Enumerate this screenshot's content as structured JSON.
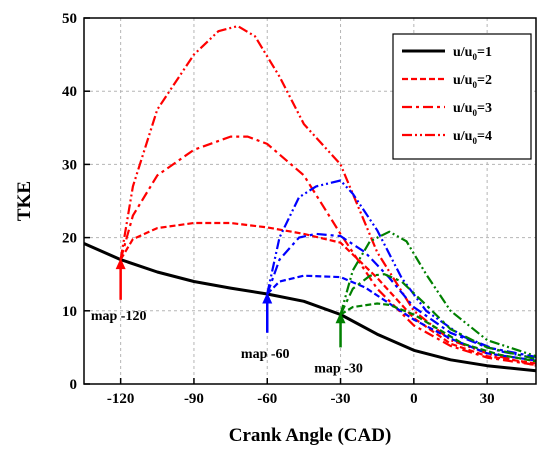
{
  "chart_data": {
    "type": "line",
    "xlabel": "Crank Angle (CAD)",
    "ylabel": "TKE",
    "xlim": [
      -135,
      50
    ],
    "ylim": [
      0,
      50
    ],
    "xticks": [
      -120,
      -90,
      -60,
      -30,
      0,
      30
    ],
    "yticks": [
      0,
      10,
      20,
      30,
      40,
      50
    ],
    "xtick_labels": [
      "-120",
      "-90",
      "-60",
      "-30",
      "0",
      "30"
    ],
    "ytick_labels": [
      "0",
      "10",
      "20",
      "30",
      "40",
      "50"
    ],
    "grid": true,
    "legend_position": "top-right",
    "legend": [
      {
        "base": "u/u",
        "sub": "0",
        "suffix": "=1",
        "style": "solid",
        "color": "#000000"
      },
      {
        "base": "u/u",
        "sub": "0",
        "suffix": "=2",
        "style": "dash",
        "color": "#ff0000"
      },
      {
        "base": "u/u",
        "sub": "0",
        "suffix": "=3",
        "style": "dashdot",
        "color": "#ff0000"
      },
      {
        "base": "u/u",
        "sub": "0",
        "suffix": "=4",
        "style": "dashdotdot",
        "color": "#ff0000"
      }
    ],
    "series": [
      {
        "name": "u/u0=1",
        "color": "#000000",
        "style": "solid",
        "points": [
          [
            -135,
            19.2
          ],
          [
            -120,
            17.0
          ],
          [
            -105,
            15.3
          ],
          [
            -90,
            14.0
          ],
          [
            -75,
            13.1
          ],
          [
            -60,
            12.3
          ],
          [
            -45,
            11.3
          ],
          [
            -30,
            9.5
          ],
          [
            -15,
            6.8
          ],
          [
            0,
            4.6
          ],
          [
            15,
            3.3
          ],
          [
            30,
            2.5
          ],
          [
            50,
            1.8
          ]
        ]
      },
      {
        "name": "u/u0=2 (map -120)",
        "color": "#ff0000",
        "style": "dash",
        "points": [
          [
            -120,
            17.0
          ],
          [
            -115,
            19.8
          ],
          [
            -105,
            21.3
          ],
          [
            -90,
            22.0
          ],
          [
            -75,
            22.0
          ],
          [
            -60,
            21.4
          ],
          [
            -45,
            20.5
          ],
          [
            -30,
            19.3
          ],
          [
            -15,
            14.5
          ],
          [
            0,
            9.0
          ],
          [
            15,
            5.5
          ],
          [
            30,
            3.8
          ],
          [
            50,
            2.8
          ]
        ]
      },
      {
        "name": "u/u0=3 (map -120)",
        "color": "#ff0000",
        "style": "dashdot",
        "points": [
          [
            -120,
            17.0
          ],
          [
            -115,
            23.0
          ],
          [
            -105,
            28.5
          ],
          [
            -90,
            32.0
          ],
          [
            -75,
            33.8
          ],
          [
            -68,
            33.8
          ],
          [
            -60,
            32.8
          ],
          [
            -45,
            28.5
          ],
          [
            -30,
            20.5
          ],
          [
            -15,
            13.0
          ],
          [
            0,
            8.0
          ],
          [
            15,
            5.2
          ],
          [
            30,
            3.6
          ],
          [
            50,
            2.6
          ]
        ]
      },
      {
        "name": "u/u0=4 (map -120)",
        "color": "#ff0000",
        "style": "dashdotdot",
        "points": [
          [
            -120,
            17.0
          ],
          [
            -115,
            27.0
          ],
          [
            -105,
            37.5
          ],
          [
            -90,
            45.0
          ],
          [
            -80,
            48.2
          ],
          [
            -72,
            48.9
          ],
          [
            -65,
            47.5
          ],
          [
            -55,
            42.0
          ],
          [
            -45,
            35.5
          ],
          [
            -30,
            30.0
          ],
          [
            -15,
            18.0
          ],
          [
            0,
            10.0
          ],
          [
            15,
            6.0
          ],
          [
            30,
            4.2
          ],
          [
            50,
            2.5
          ]
        ]
      },
      {
        "name": "u/u0=2 (map -60)",
        "color": "#0000ff",
        "style": "dash",
        "points": [
          [
            -60,
            12.3
          ],
          [
            -55,
            14.0
          ],
          [
            -45,
            14.8
          ],
          [
            -30,
            14.6
          ],
          [
            -20,
            13.2
          ],
          [
            -10,
            11.0
          ],
          [
            0,
            8.8
          ],
          [
            15,
            6.2
          ],
          [
            30,
            4.2
          ],
          [
            50,
            3.2
          ]
        ]
      },
      {
        "name": "u/u0=3 (map -60)",
        "color": "#0000ff",
        "style": "dashdot",
        "points": [
          [
            -60,
            12.3
          ],
          [
            -55,
            17.0
          ],
          [
            -47,
            20.0
          ],
          [
            -40,
            20.5
          ],
          [
            -30,
            20.2
          ],
          [
            -20,
            18.0
          ],
          [
            -10,
            14.5
          ],
          [
            0,
            10.5
          ],
          [
            15,
            7.0
          ],
          [
            30,
            5.0
          ],
          [
            50,
            3.7
          ]
        ]
      },
      {
        "name": "u/u0=4 (map -60)",
        "color": "#0000ff",
        "style": "dashdotdot",
        "points": [
          [
            -60,
            12.3
          ],
          [
            -55,
            20.0
          ],
          [
            -47,
            25.5
          ],
          [
            -40,
            27.0
          ],
          [
            -30,
            27.8
          ],
          [
            -25,
            26.0
          ],
          [
            -15,
            21.0
          ],
          [
            -5,
            14.5
          ],
          [
            5,
            10.0
          ],
          [
            20,
            6.5
          ],
          [
            35,
            4.5
          ],
          [
            50,
            3.5
          ]
        ]
      },
      {
        "name": "u/u0=2 (map -30)",
        "color": "#008000",
        "style": "dash",
        "points": [
          [
            -30,
            9.5
          ],
          [
            -25,
            10.5
          ],
          [
            -15,
            11.0
          ],
          [
            -10,
            10.8
          ],
          [
            0,
            9.5
          ],
          [
            10,
            7.5
          ],
          [
            20,
            5.5
          ],
          [
            35,
            4.0
          ],
          [
            50,
            3.1
          ]
        ]
      },
      {
        "name": "u/u0=3 (map -30)",
        "color": "#008000",
        "style": "dashdot",
        "points": [
          [
            -30,
            9.5
          ],
          [
            -25,
            13.0
          ],
          [
            -18,
            14.8
          ],
          [
            -12,
            15.0
          ],
          [
            -5,
            14.0
          ],
          [
            5,
            10.8
          ],
          [
            15,
            7.5
          ],
          [
            30,
            5.0
          ],
          [
            50,
            3.4
          ]
        ]
      },
      {
        "name": "u/u0=4 (map -30)",
        "color": "#008000",
        "style": "dashdotdot",
        "points": [
          [
            -30,
            9.5
          ],
          [
            -25,
            15.5
          ],
          [
            -18,
            19.5
          ],
          [
            -10,
            20.8
          ],
          [
            -3,
            19.5
          ],
          [
            5,
            15.0
          ],
          [
            15,
            10.0
          ],
          [
            30,
            6.0
          ],
          [
            50,
            3.8
          ]
        ]
      }
    ],
    "annotations": [
      {
        "label": "map -120",
        "x": -120,
        "y_from": 11.5,
        "y_to": 17.2,
        "color": "#ff0000"
      },
      {
        "label": "map -60",
        "x": -60,
        "y_from": 7.0,
        "y_to": 12.5,
        "color": "#0000ff"
      },
      {
        "label": "map -30",
        "x": -30,
        "y_from": 5.0,
        "y_to": 9.8,
        "color": "#008000"
      }
    ]
  }
}
